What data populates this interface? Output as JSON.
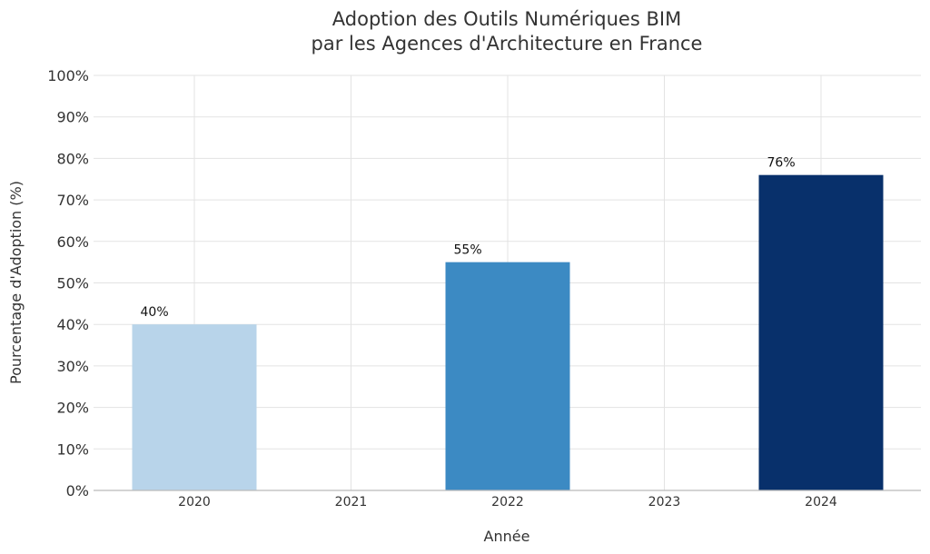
{
  "chart_data": {
    "type": "bar",
    "title": "Adoption des Outils Numériques BIM",
    "subtitle": "par les Agences d'Architecture en France",
    "xlabel": "Année",
    "ylabel": "Pourcentage d'Adoption (%)",
    "categories": [
      "2020",
      "2021",
      "2022",
      "2023",
      "2024"
    ],
    "values": [
      40,
      null,
      55,
      null,
      76
    ],
    "data_labels": [
      "40%",
      "",
      "55%",
      "",
      "76%"
    ],
    "bar_colors": [
      "#b8d4ea",
      null,
      "#3c8ac3",
      null,
      "#08306b"
    ],
    "ylim": [
      0,
      100
    ],
    "yticks": [
      0,
      10,
      20,
      30,
      40,
      50,
      60,
      70,
      80,
      90,
      100
    ],
    "ytick_labels": [
      "0%",
      "10%",
      "20%",
      "30%",
      "40%",
      "50%",
      "60%",
      "70%",
      "80%",
      "90%",
      "100%"
    ],
    "grid": true,
    "legend": "none"
  }
}
